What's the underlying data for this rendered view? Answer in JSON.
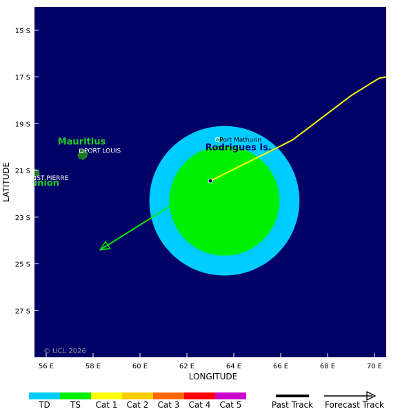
{
  "map": {
    "lon_range": [
      55.5,
      70.5
    ],
    "lat_range": [
      -29.0,
      -14.0
    ],
    "lon_ticks": [
      {
        "value": 56,
        "label": "56 E"
      },
      {
        "value": 58,
        "label": "58 E"
      },
      {
        "value": 60,
        "label": "60 E"
      },
      {
        "value": 62,
        "label": "62 E"
      },
      {
        "value": 64,
        "label": "64 E"
      },
      {
        "value": 66,
        "label": "66 E"
      },
      {
        "value": 68,
        "label": "68 E"
      },
      {
        "value": 70,
        "label": "70 E"
      }
    ],
    "lat_ticks": [
      {
        "value": -15,
        "label": "15 S"
      },
      {
        "value": -17,
        "label": "17 S"
      },
      {
        "value": -19,
        "label": "19 S"
      },
      {
        "value": -21,
        "label": "21 S"
      },
      {
        "value": -23,
        "label": "23 S"
      },
      {
        "value": -25,
        "label": "25 S"
      },
      {
        "value": -27,
        "label": "27 S"
      }
    ],
    "xlabel": "LONGITUDE",
    "ylabel": "LATITUDE",
    "copyright": "© UCL 2026",
    "colors": {
      "ocean": "#000066",
      "land": "#1f7a1f",
      "land_label": "#22cc22",
      "td": "#00ccff",
      "ts": "#00ee00",
      "cat1": "#ffff00",
      "cat2": "#ffcc00",
      "cat3": "#ff6600",
      "cat4": "#ff0000",
      "cat5": "#cc00cc"
    }
  },
  "places": {
    "mauritius": {
      "label": "Mauritius",
      "lon": 57.55,
      "lat": -20.3
    },
    "port_louis": {
      "label": "PORT LOUIS",
      "lon": 57.5,
      "lat": -20.16
    },
    "reunion": {
      "label": "Réunion",
      "lon": 55.5,
      "lat": -21.1
    },
    "st_pierre": {
      "label": "ST PIERRE",
      "lon": 55.48,
      "lat": -21.33
    },
    "rodrigues": {
      "label": "Rodrigues Is.",
      "lon": 63.4,
      "lat": -19.7
    },
    "port_mathurin": {
      "label": "Port Mathurin",
      "lon": 63.42,
      "lat": -19.68
    }
  },
  "storm": {
    "position": {
      "lon": 63.0,
      "lat": -21.45
    },
    "wind_center": {
      "lon": 63.6,
      "lat": -22.3
    },
    "td_radius_deg": 3.2,
    "ts_radius_deg": 2.35,
    "cat1_track": [
      {
        "lon": 70.5,
        "lat": -17.0
      },
      {
        "lon": 70.2,
        "lat": -17.05
      },
      {
        "lon": 69.0,
        "lat": -17.8
      },
      {
        "lon": 66.5,
        "lat": -19.7
      },
      {
        "lon": 63.0,
        "lat": -21.45
      }
    ],
    "ts_forecast": [
      {
        "lon": 63.0,
        "lat": -21.45
      },
      {
        "lon": 58.3,
        "lat": -24.4
      }
    ]
  },
  "legend": {
    "categories": [
      "TD",
      "TS",
      "Cat 1",
      "Cat 2",
      "Cat 3",
      "Cat 4",
      "Cat 5"
    ],
    "past_track": "Past Track",
    "forecast_track": "Forecast Track"
  }
}
